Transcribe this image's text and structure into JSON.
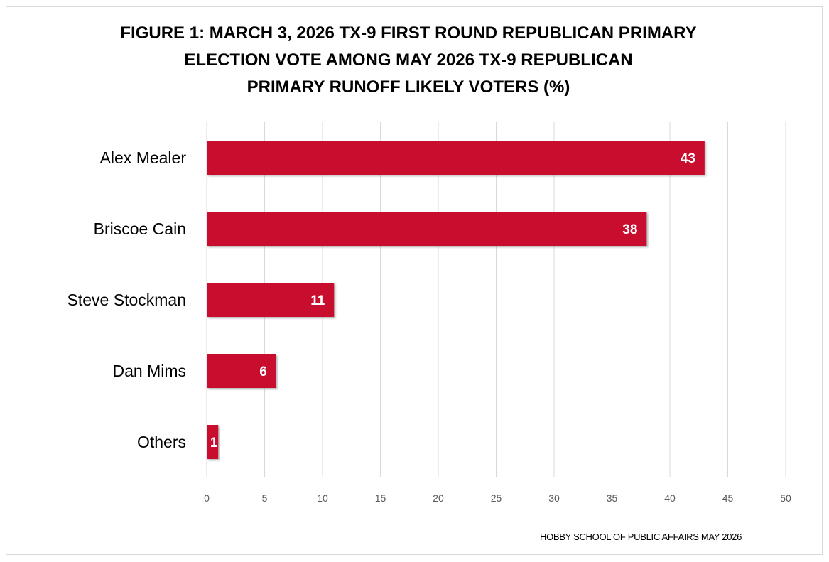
{
  "title_lines": [
    "FIGURE 1: MARCH 3, 2026 TX-9 FIRST ROUND REPUBLICAN PRIMARY",
    "ELECTION VOTE AMONG MAY 2026 TX-9 REPUBLICAN",
    "PRIMARY RUNOFF LIKELY VOTERS (%)"
  ],
  "footer": "HOBBY SCHOOL OF PUBLIC AFFAIRS MAY 2026",
  "colors": {
    "bar": "#C8102E",
    "bar_shadow": "#a8a8a8",
    "grid": "#d9d9d9",
    "axis_text": "#595959",
    "category_text": "#000000",
    "data_label": "#ffffff"
  },
  "chart_data": {
    "type": "bar",
    "orientation": "horizontal",
    "title": "FIGURE 1: MARCH 3, 2026 TX-9 FIRST ROUND REPUBLICAN PRIMARY ELECTION VOTE AMONG MAY 2026 TX-9 REPUBLICAN PRIMARY RUNOFF LIKELY VOTERS (%)",
    "categories": [
      "Alex Mealer",
      "Briscoe Cain",
      "Steve Stockman",
      "Dan Mims",
      "Others"
    ],
    "values": [
      43,
      38,
      11,
      6,
      1
    ],
    "data_labels": [
      "43",
      "38",
      "11",
      "6",
      "1"
    ],
    "xlim": [
      0,
      50
    ],
    "xticks": [
      0,
      5,
      10,
      15,
      20,
      25,
      30,
      35,
      40,
      45,
      50
    ],
    "xtick_labels": [
      "0",
      "5",
      "10",
      "15",
      "20",
      "25",
      "30",
      "35",
      "40",
      "45",
      "50"
    ],
    "grid": true,
    "legend": "none"
  }
}
